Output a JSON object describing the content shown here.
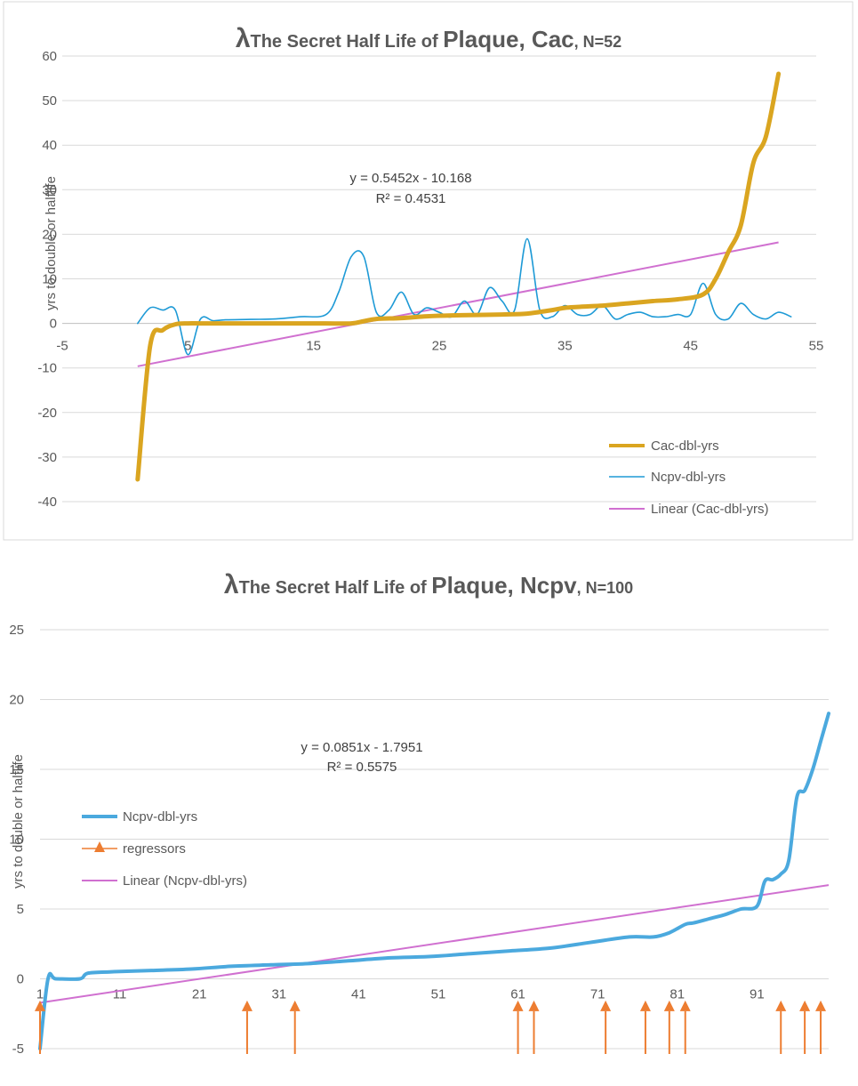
{
  "chart_data": [
    {
      "type": "line",
      "title_parts": [
        "λ",
        "The Secret Half Life of ",
        "Plaque",
        ", Cac",
        ", N=52"
      ],
      "ylabel": "yrs to double or halflife",
      "xlabel": "",
      "xlim": [
        -5,
        55
      ],
      "ylim": [
        -40,
        60
      ],
      "x_ticks": [
        -5,
        5,
        15,
        25,
        35,
        45,
        55
      ],
      "y_ticks": [
        -40,
        -30,
        -20,
        -10,
        0,
        10,
        20,
        30,
        40,
        50,
        60
      ],
      "grid": true,
      "legend_position": "bottom-right",
      "series": [
        {
          "name": "Cac-dbl-yrs",
          "color": "#DAA520",
          "x": [
            1,
            2,
            3,
            4,
            5,
            6,
            8,
            10,
            12,
            14,
            16,
            18,
            19,
            20,
            22,
            24,
            26,
            28,
            30,
            32,
            34,
            35,
            36,
            38,
            40,
            42,
            44,
            46,
            47,
            48,
            49,
            50,
            51,
            52
          ],
          "y": [
            -35,
            -5,
            -1.5,
            -0.2,
            0,
            0,
            0,
            0,
            0,
            0,
            0,
            0,
            0.5,
            1,
            1.2,
            1.6,
            1.8,
            1.9,
            2,
            2.2,
            3,
            3.5,
            3.7,
            4,
            4.5,
            5,
            5.4,
            6.5,
            10,
            16,
            22,
            36,
            42,
            56
          ]
        },
        {
          "name": "Ncpv-dbl-yrs",
          "color": "#1E9AD6",
          "x": [
            1,
            2,
            3,
            4,
            5,
            6,
            7,
            8,
            10,
            12,
            14,
            16,
            17,
            18,
            19,
            20,
            21,
            22,
            23,
            24,
            25,
            26,
            27,
            28,
            29,
            30,
            31,
            32,
            33,
            34,
            35,
            36,
            37,
            38,
            39,
            40,
            41,
            42,
            43,
            44,
            45,
            46,
            47,
            48,
            49,
            50,
            51,
            52,
            53
          ],
          "y": [
            0,
            3.5,
            3,
            3,
            -7,
            1,
            0.6,
            0.8,
            0.9,
            1,
            1.5,
            2,
            7,
            15,
            15,
            2.5,
            3,
            7,
            2,
            3.5,
            2.5,
            1.5,
            5,
            2,
            8,
            5,
            3,
            19,
            3,
            1.5,
            4,
            2,
            2,
            4,
            1,
            2,
            2.5,
            1.5,
            1.5,
            2,
            2,
            9,
            2,
            1,
            4.5,
            2,
            1,
            2.5,
            1.5
          ]
        },
        {
          "name": "Linear (Cac-dbl-yrs)",
          "color": "#D070D0",
          "x": [
            1,
            52
          ],
          "y": [
            -9.623,
            18.182
          ]
        }
      ],
      "annotations": [
        "y = 0.5452x - 10.168",
        "R² = 0.4531"
      ]
    },
    {
      "type": "line",
      "title_parts": [
        "λ",
        "The Secret Half Life of ",
        "Plaque",
        ", Ncpv",
        ", N=100"
      ],
      "ylabel": "yrs to double or halflife",
      "xlabel": "",
      "xlim": [
        1,
        100
      ],
      "ylim": [
        -5,
        25
      ],
      "x_ticks": [
        1,
        11,
        21,
        31,
        41,
        51,
        61,
        71,
        81,
        91
      ],
      "y_ticks": [
        -5,
        0,
        5,
        10,
        15,
        20,
        25
      ],
      "grid": true,
      "legend_position": "left",
      "series": [
        {
          "name": "Ncpv-dbl-yrs",
          "color": "#4BA9DE",
          "x": [
            1,
            2,
            3,
            6,
            7,
            10,
            15,
            20,
            25,
            30,
            35,
            40,
            45,
            50,
            55,
            60,
            65,
            70,
            75,
            78,
            80,
            82,
            83,
            85,
            87,
            89,
            91,
            92,
            93,
            94,
            95,
            96,
            97,
            98,
            99,
            100
          ],
          "y": [
            -5,
            0,
            0,
            0,
            0.4,
            0.5,
            0.6,
            0.7,
            0.9,
            1,
            1.1,
            1.3,
            1.5,
            1.6,
            1.8,
            2,
            2.2,
            2.6,
            3,
            3,
            3.3,
            3.9,
            4,
            4.3,
            4.6,
            5,
            5.2,
            7,
            7.1,
            7.5,
            8.5,
            13,
            13.5,
            15,
            17,
            19
          ]
        },
        {
          "name": "regressors",
          "color": "#ED7D31",
          "x": [
            1,
            27,
            33,
            61,
            63,
            72,
            77,
            80,
            82,
            94,
            97,
            99
          ],
          "y": [
            -2,
            -2,
            -2,
            -2,
            -2,
            -2,
            -2,
            -2,
            -2,
            -2,
            -2,
            -2
          ]
        },
        {
          "name": "Linear (Ncpv-dbl-yrs)",
          "color": "#D070D0",
          "x": [
            1,
            100
          ],
          "y": [
            -1.71,
            6.715
          ]
        }
      ],
      "annotations": [
        "y = 0.0851x - 1.7951",
        "R² = 0.5575"
      ]
    }
  ]
}
